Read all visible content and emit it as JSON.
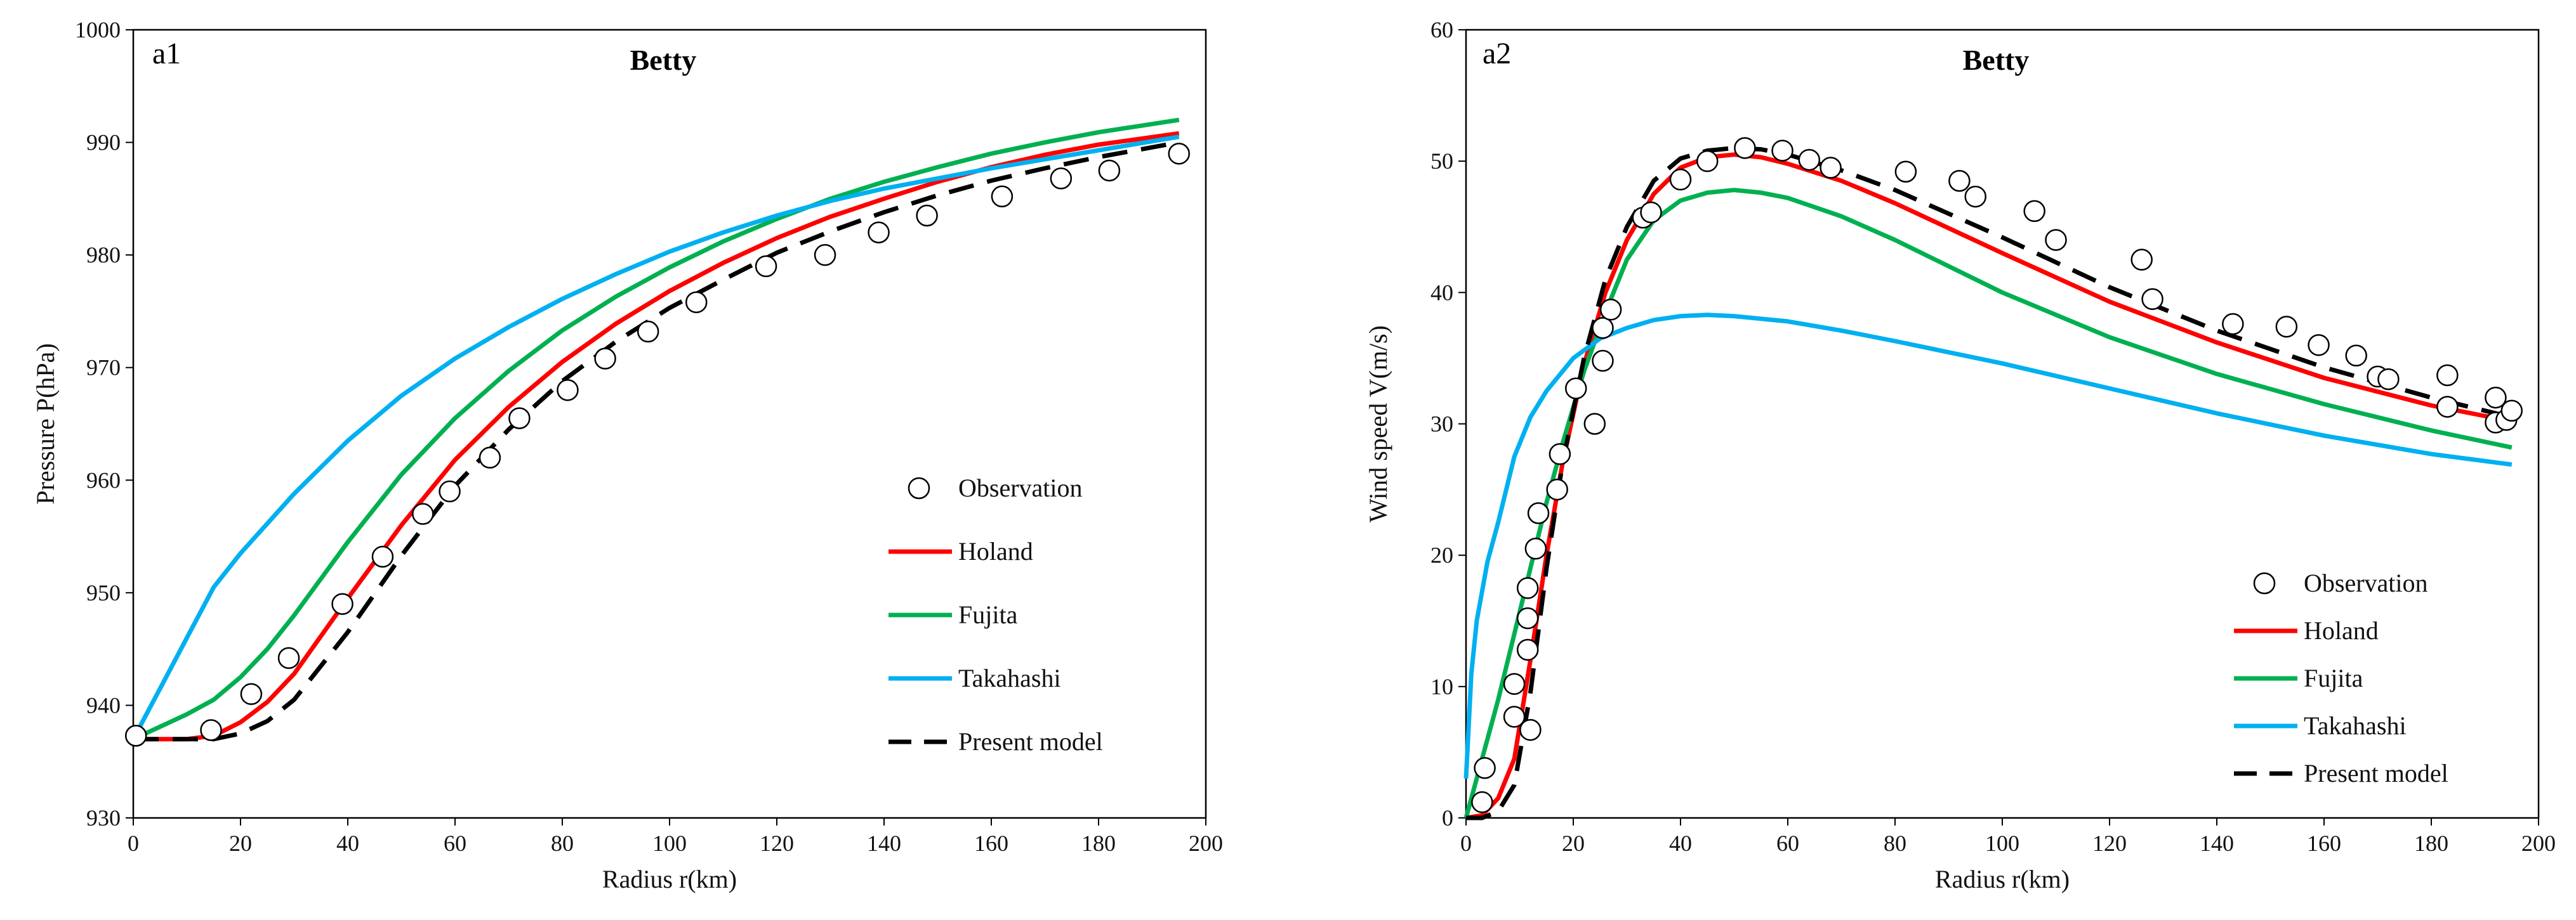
{
  "chart_data": [
    {
      "type": "line",
      "panel_label": "a1",
      "title": "Betty",
      "xlabel": "Radius r(km)",
      "ylabel": "Pressure P(hPa)",
      "xlim": [
        0,
        200
      ],
      "ylim": [
        930,
        1000
      ],
      "xticks": [
        0,
        20,
        40,
        60,
        80,
        100,
        120,
        140,
        160,
        180,
        200
      ],
      "yticks": [
        930,
        940,
        950,
        960,
        970,
        980,
        990,
        1000
      ],
      "grid": false,
      "legend_position": "right",
      "legend": [
        "Observation",
        "Holand",
        "Fujita",
        "Takahashi",
        "Present model"
      ],
      "observation": {
        "name": "Observation",
        "points": [
          [
            0.5,
            937.3
          ],
          [
            14.5,
            937.8
          ],
          [
            22,
            941
          ],
          [
            29,
            944.2
          ],
          [
            39,
            949
          ],
          [
            46.5,
            953.2
          ],
          [
            54,
            957
          ],
          [
            59,
            959
          ],
          [
            66.5,
            962
          ],
          [
            72,
            965.5
          ],
          [
            81,
            968
          ],
          [
            88,
            970.8
          ],
          [
            96,
            973.2
          ],
          [
            105,
            975.8
          ],
          [
            118,
            979
          ],
          [
            129,
            980
          ],
          [
            139,
            982
          ],
          [
            148,
            983.5
          ],
          [
            162,
            985.2
          ],
          [
            173,
            986.8
          ],
          [
            182,
            987.5
          ],
          [
            195,
            989
          ]
        ]
      },
      "series": [
        {
          "name": "Holand",
          "color": "#ff0000",
          "dash": "solid",
          "x": [
            0,
            10,
            15,
            20,
            25,
            30,
            40,
            50,
            60,
            70,
            80,
            90,
            100,
            110,
            120,
            130,
            140,
            150,
            160,
            170,
            180,
            195
          ],
          "y": [
            937,
            937,
            937.3,
            938.5,
            940.3,
            942.8,
            949.5,
            956,
            961.8,
            966.5,
            970.5,
            973.9,
            976.8,
            979.3,
            981.5,
            983.4,
            985,
            986.5,
            987.8,
            988.9,
            989.8,
            990.8
          ]
        },
        {
          "name": "Fujita",
          "color": "#00b050",
          "dash": "solid",
          "x": [
            0,
            10,
            15,
            20,
            25,
            30,
            40,
            50,
            60,
            70,
            80,
            90,
            100,
            110,
            120,
            130,
            140,
            150,
            160,
            170,
            180,
            195
          ],
          "y": [
            937,
            939.2,
            940.5,
            942.5,
            945,
            948,
            954.5,
            960.5,
            965.5,
            969.7,
            973.3,
            976.3,
            978.9,
            981.2,
            983.2,
            985,
            986.5,
            987.8,
            989,
            990,
            990.9,
            992
          ]
        },
        {
          "name": "Takahashi",
          "color": "#00b0f0",
          "dash": "solid",
          "x": [
            0,
            5,
            10,
            15,
            20,
            30,
            40,
            50,
            60,
            70,
            80,
            90,
            100,
            110,
            120,
            130,
            140,
            150,
            160,
            170,
            180,
            195
          ],
          "y": [
            937,
            941.5,
            946,
            950.5,
            953.5,
            958.8,
            963.5,
            967.5,
            970.8,
            973.6,
            976.1,
            978.3,
            980.3,
            982,
            983.5,
            984.8,
            985.9,
            986.8,
            987.7,
            988.5,
            989.3,
            990.5
          ]
        },
        {
          "name": "Present model",
          "color": "#000000",
          "dash": "dashed",
          "x": [
            0,
            10,
            15,
            20,
            25,
            30,
            40,
            50,
            60,
            70,
            80,
            90,
            100,
            110,
            120,
            130,
            140,
            150,
            160,
            170,
            180,
            195
          ],
          "y": [
            937,
            937,
            937,
            937.5,
            938.6,
            940.5,
            946.5,
            953.3,
            959.5,
            964.5,
            968.8,
            972.3,
            975.3,
            977.8,
            980.2,
            982.1,
            983.8,
            985.3,
            986.6,
            987.7,
            988.7,
            990
          ]
        }
      ]
    },
    {
      "type": "line",
      "panel_label": "a2",
      "title": "Betty",
      "xlabel": "Radius r(km)",
      "ylabel": "Wind speed V(m/s)",
      "xlim": [
        0,
        200
      ],
      "ylim": [
        0,
        60
      ],
      "xticks": [
        0,
        20,
        40,
        60,
        80,
        100,
        120,
        140,
        160,
        180,
        200
      ],
      "yticks": [
        0,
        10,
        20,
        30,
        40,
        50,
        60
      ],
      "grid": false,
      "legend_position": "right",
      "legend": [
        "Observation",
        "Holand",
        "Fujita",
        "Takahashi",
        "Present model"
      ],
      "observation": {
        "name": "Observation",
        "points": [
          [
            3,
            1.2
          ],
          [
            3.5,
            3.8
          ],
          [
            9,
            7.7
          ],
          [
            9,
            10.2
          ],
          [
            11.5,
            12.8
          ],
          [
            11.5,
            15.2
          ],
          [
            11.5,
            17.5
          ],
          [
            12,
            6.7
          ],
          [
            13,
            20.5
          ],
          [
            13.5,
            23.2
          ],
          [
            17,
            25
          ],
          [
            17.5,
            27.7
          ],
          [
            20.5,
            32.7
          ],
          [
            24,
            30
          ],
          [
            25.5,
            34.8
          ],
          [
            25.5,
            37.3
          ],
          [
            27,
            38.7
          ],
          [
            33,
            45.7
          ],
          [
            34.5,
            46.1
          ],
          [
            40,
            48.6
          ],
          [
            45,
            50
          ],
          [
            52,
            51
          ],
          [
            59,
            50.8
          ],
          [
            64,
            50.1
          ],
          [
            68,
            49.5
          ],
          [
            82,
            49.2
          ],
          [
            92,
            48.5
          ],
          [
            95,
            47.3
          ],
          [
            106,
            46.2
          ],
          [
            110,
            44
          ],
          [
            126,
            42.5
          ],
          [
            128,
            39.5
          ],
          [
            143,
            37.6
          ],
          [
            153,
            37.4
          ],
          [
            159,
            36
          ],
          [
            166,
            35.2
          ],
          [
            170,
            33.6
          ],
          [
            172,
            33.4
          ],
          [
            183,
            33.7
          ],
          [
            183,
            31.3
          ],
          [
            192,
            32
          ],
          [
            192,
            30.1
          ],
          [
            194,
            30.3
          ],
          [
            195,
            31
          ]
        ]
      },
      "series": [
        {
          "name": "Holand",
          "color": "#ff0000",
          "dash": "solid",
          "x": [
            0,
            3,
            6,
            9,
            12,
            15,
            18,
            22,
            26,
            30,
            35,
            40,
            45,
            50,
            55,
            60,
            70,
            80,
            100,
            120,
            140,
            160,
            180,
            195
          ],
          "y": [
            0,
            0.2,
            1.5,
            4.5,
            12,
            20,
            27,
            34.5,
            40,
            44,
            47.5,
            49.5,
            50.3,
            50.5,
            50.3,
            49.8,
            48.5,
            46.8,
            43,
            39.3,
            36.2,
            33.5,
            31.4,
            30.2
          ]
        },
        {
          "name": "Fujita",
          "color": "#00b050",
          "dash": "solid",
          "x": [
            0,
            3,
            6,
            9,
            12,
            15,
            18,
            22,
            26,
            30,
            35,
            40,
            45,
            50,
            55,
            60,
            70,
            80,
            100,
            120,
            140,
            160,
            180,
            195
          ],
          "y": [
            0,
            4.5,
            9,
            14,
            19,
            24,
            28.5,
            34,
            38.5,
            42.5,
            45.5,
            47,
            47.6,
            47.8,
            47.6,
            47.2,
            45.8,
            44,
            40,
            36.6,
            33.8,
            31.5,
            29.5,
            28.2
          ]
        },
        {
          "name": "Takahashi",
          "color": "#00b0f0",
          "dash": "solid",
          "x": [
            0,
            1,
            2,
            4,
            6,
            9,
            12,
            15,
            20,
            25,
            30,
            35,
            40,
            45,
            50,
            60,
            70,
            80,
            100,
            120,
            140,
            160,
            180,
            195
          ],
          "y": [
            3,
            11,
            15,
            19.5,
            22.5,
            27.5,
            30.5,
            32.5,
            35,
            36.5,
            37.3,
            37.9,
            38.2,
            38.3,
            38.2,
            37.8,
            37.1,
            36.3,
            34.6,
            32.7,
            30.8,
            29.1,
            27.7,
            26.9
          ]
        },
        {
          "name": "Present model",
          "color": "#000000",
          "dash": "dashed",
          "x": [
            0,
            3,
            6,
            9,
            12,
            15,
            18,
            22,
            26,
            30,
            35,
            40,
            45,
            50,
            55,
            60,
            70,
            80,
            100,
            120,
            140,
            160,
            180,
            195
          ],
          "y": [
            0,
            0,
            0.5,
            2.5,
            9.5,
            19,
            27,
            35,
            41,
            45,
            48.5,
            50.2,
            50.8,
            51,
            50.9,
            50.5,
            49.3,
            47.8,
            44.2,
            40.4,
            37.1,
            34.3,
            32,
            30.5
          ]
        }
      ]
    }
  ]
}
